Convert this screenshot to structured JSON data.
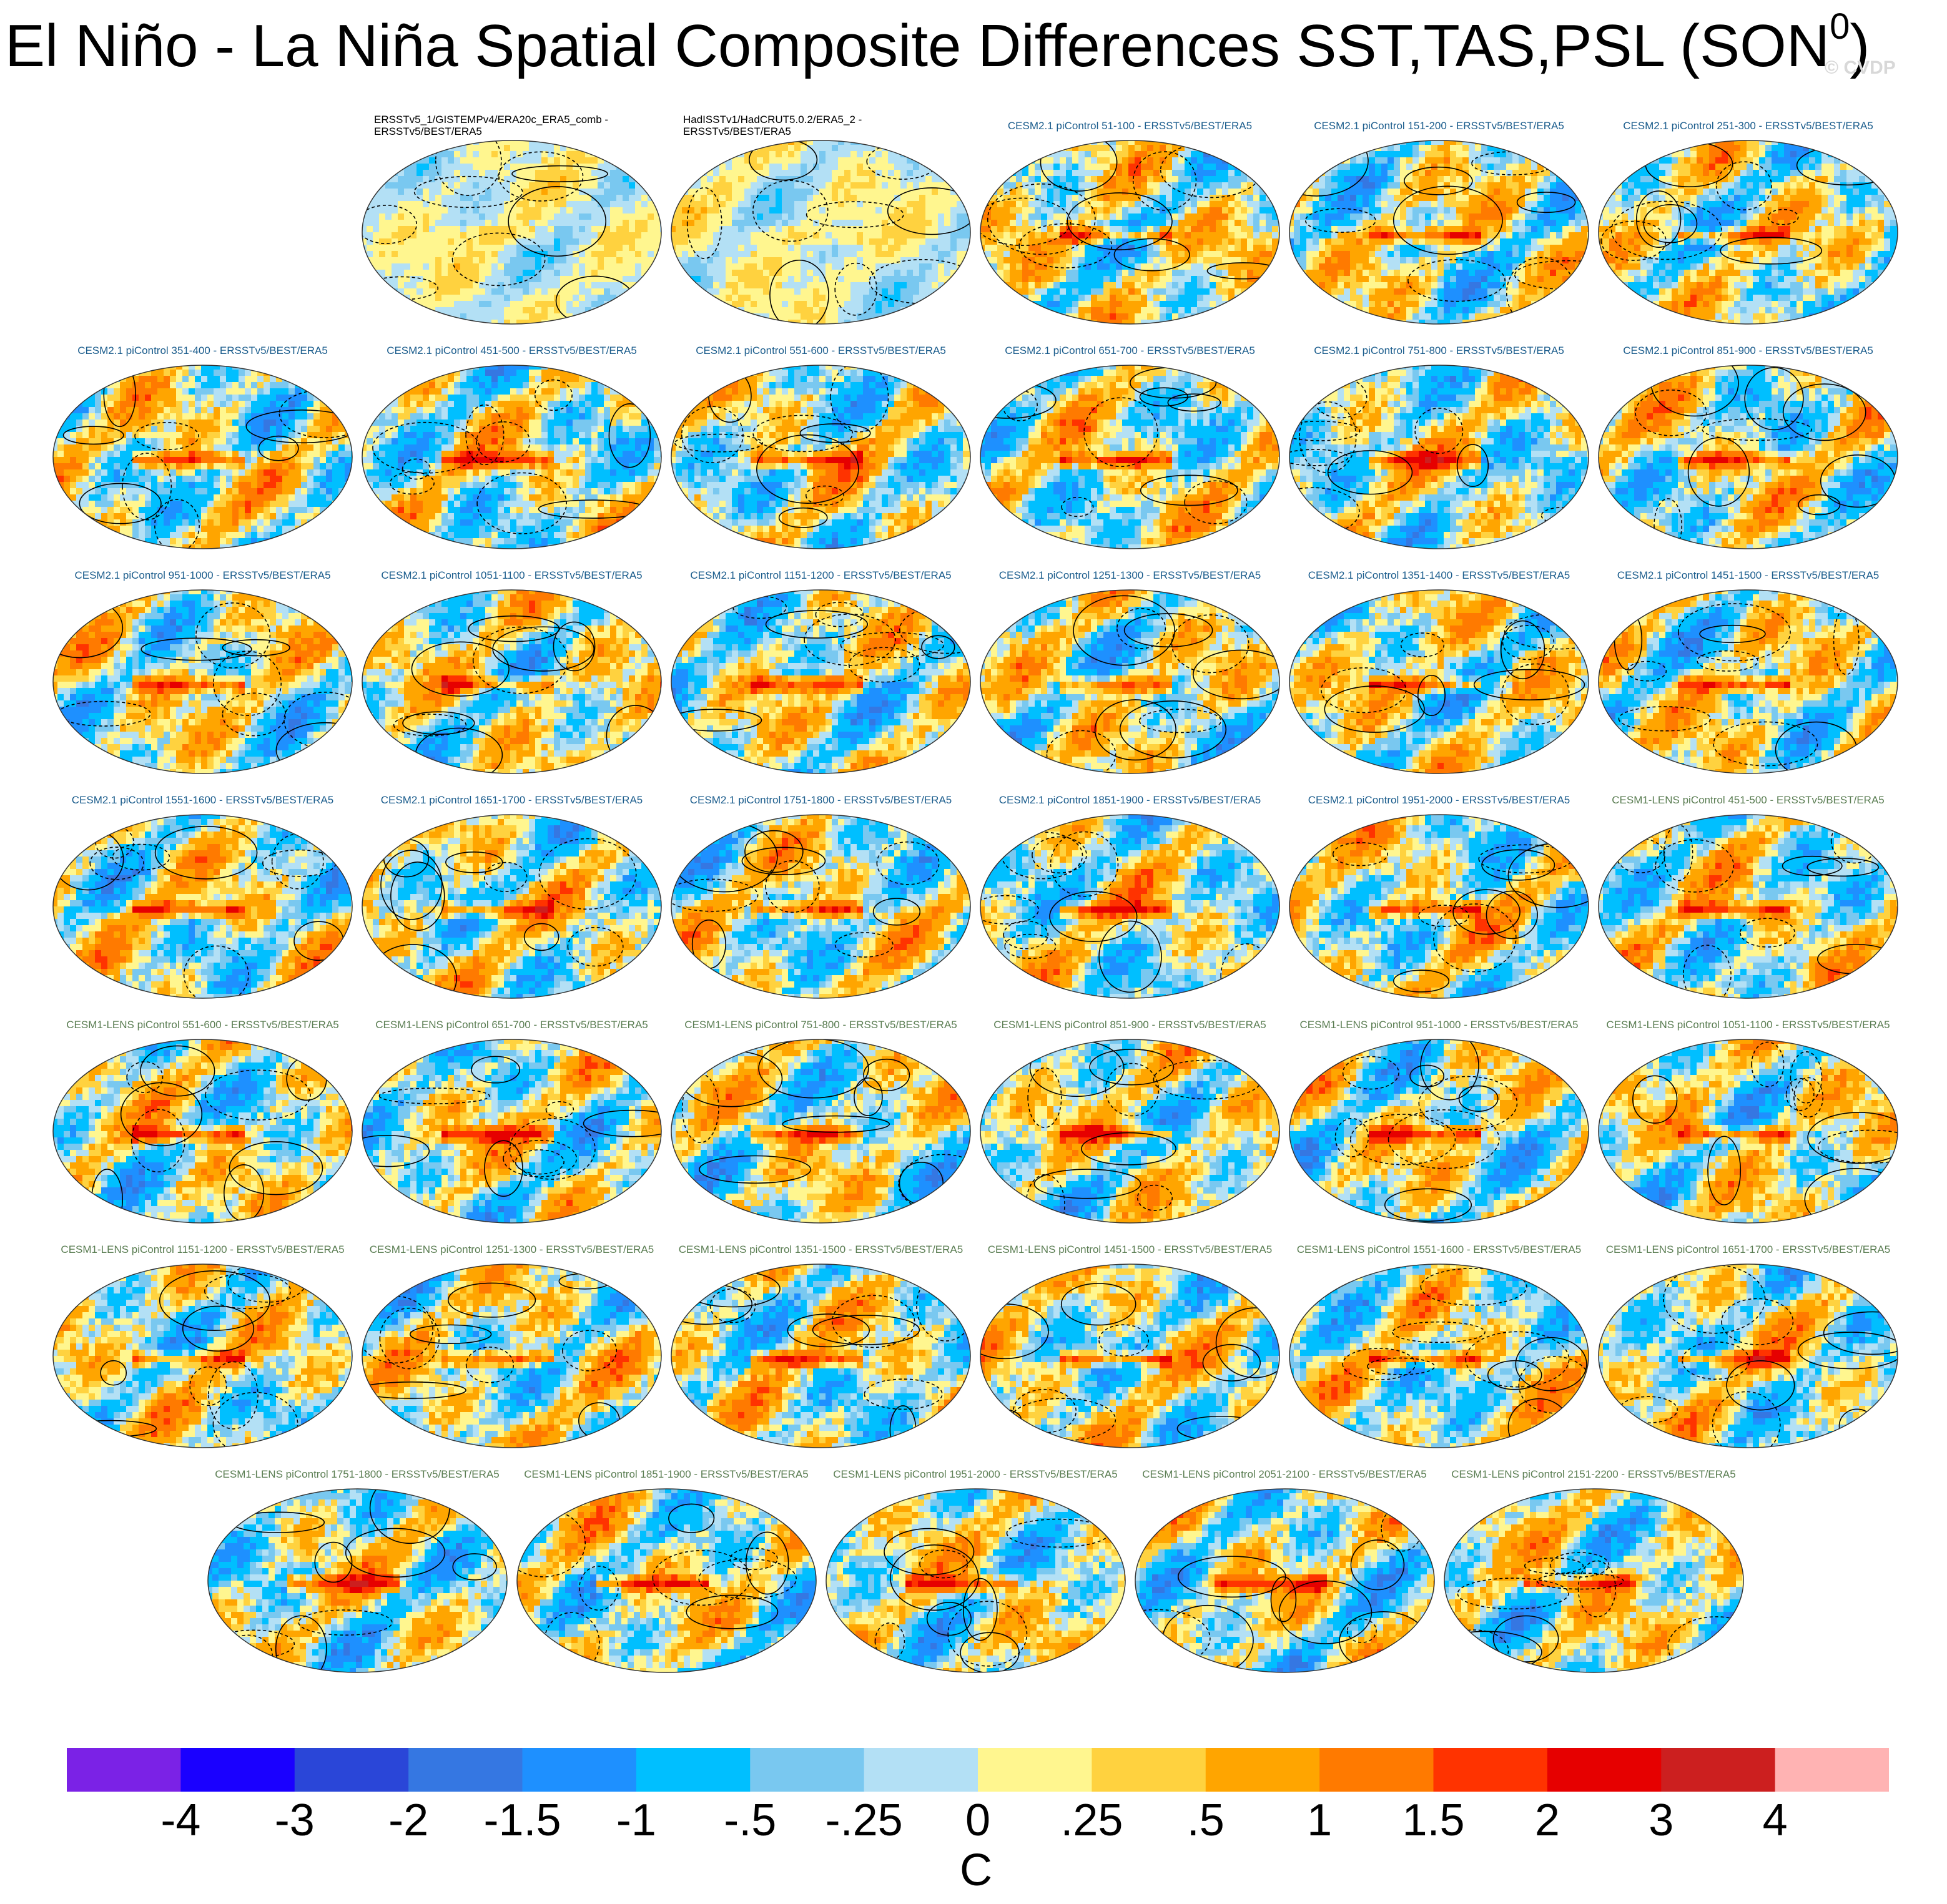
{
  "title": "El Niño - La Niña Spatial Composite Differences SST,TAS,PSL (SON",
  "title_sup": "0",
  "title_close": ")",
  "watermark": "© CVDP",
  "colors": {
    "model_cesm2": "#1a5c8c",
    "model_cesm1": "#5a7d52",
    "observations": "#000000"
  },
  "chart_data": {
    "type": "heatmap",
    "projection": "Robinson (global maps with PSL contours)",
    "layout": "7 rows of composite maps",
    "fields": [
      "SST",
      "TAS",
      "PSL"
    ],
    "season": "SON0",
    "rows": [
      [
        {
          "label": "ERSSTv5_1/GISTEMPv4/ERA20c_ERA5_comb -\nERSSTv5/BEST/ERA5",
          "group": "obs",
          "seed": 11
        },
        {
          "label": "HadISSTv1/HadCRUT5.0.2/ERA5_2 -\nERSSTv5/BEST/ERA5",
          "group": "obs",
          "seed": 12
        },
        {
          "label": "CESM2.1 piControl 51-100 - ERSSTv5/BEST/ERA5",
          "group": "cesm2",
          "seed": 13
        },
        {
          "label": "CESM2.1 piControl 151-200 - ERSSTv5/BEST/ERA5",
          "group": "cesm2",
          "seed": 14
        },
        {
          "label": "CESM2.1 piControl 251-300 - ERSSTv5/BEST/ERA5",
          "group": "cesm2",
          "seed": 15
        }
      ],
      [
        {
          "label": "CESM2.1 piControl 351-400 - ERSSTv5/BEST/ERA5",
          "group": "cesm2",
          "seed": 21
        },
        {
          "label": "CESM2.1 piControl 451-500 - ERSSTv5/BEST/ERA5",
          "group": "cesm2",
          "seed": 22
        },
        {
          "label": "CESM2.1 piControl 551-600 - ERSSTv5/BEST/ERA5",
          "group": "cesm2",
          "seed": 23
        },
        {
          "label": "CESM2.1 piControl 651-700 - ERSSTv5/BEST/ERA5",
          "group": "cesm2",
          "seed": 24
        },
        {
          "label": "CESM2.1 piControl 751-800 - ERSSTv5/BEST/ERA5",
          "group": "cesm2",
          "seed": 25
        },
        {
          "label": "CESM2.1 piControl 851-900 - ERSSTv5/BEST/ERA5",
          "group": "cesm2",
          "seed": 26
        }
      ],
      [
        {
          "label": "CESM2.1 piControl 951-1000 - ERSSTv5/BEST/ERA5",
          "group": "cesm2",
          "seed": 31
        },
        {
          "label": "CESM2.1 piControl 1051-1100 - ERSSTv5/BEST/ERA5",
          "group": "cesm2",
          "seed": 32
        },
        {
          "label": "CESM2.1 piControl 1151-1200 - ERSSTv5/BEST/ERA5",
          "group": "cesm2",
          "seed": 33
        },
        {
          "label": "CESM2.1 piControl 1251-1300 - ERSSTv5/BEST/ERA5",
          "group": "cesm2",
          "seed": 34
        },
        {
          "label": "CESM2.1 piControl 1351-1400 - ERSSTv5/BEST/ERA5",
          "group": "cesm2",
          "seed": 35
        },
        {
          "label": "CESM2.1 piControl 1451-1500 - ERSSTv5/BEST/ERA5",
          "group": "cesm2",
          "seed": 36
        }
      ],
      [
        {
          "label": "CESM2.1 piControl 1551-1600 - ERSSTv5/BEST/ERA5",
          "group": "cesm2",
          "seed": 41
        },
        {
          "label": "CESM2.1 piControl 1651-1700 - ERSSTv5/BEST/ERA5",
          "group": "cesm2",
          "seed": 42
        },
        {
          "label": "CESM2.1 piControl 1751-1800 - ERSSTv5/BEST/ERA5",
          "group": "cesm2",
          "seed": 43
        },
        {
          "label": "CESM2.1 piControl 1851-1900 - ERSSTv5/BEST/ERA5",
          "group": "cesm2",
          "seed": 44
        },
        {
          "label": "CESM2.1 piControl 1951-2000 - ERSSTv5/BEST/ERA5",
          "group": "cesm2",
          "seed": 45
        },
        {
          "label": "CESM1-LENS piControl 451-500 - ERSSTv5/BEST/ERA5",
          "group": "cesm1",
          "seed": 46
        }
      ],
      [
        {
          "label": "CESM1-LENS piControl 551-600 - ERSSTv5/BEST/ERA5",
          "group": "cesm1",
          "seed": 51
        },
        {
          "label": "CESM1-LENS piControl 651-700 - ERSSTv5/BEST/ERA5",
          "group": "cesm1",
          "seed": 52
        },
        {
          "label": "CESM1-LENS piControl 751-800 - ERSSTv5/BEST/ERA5",
          "group": "cesm1",
          "seed": 53
        },
        {
          "label": "CESM1-LENS piControl 851-900 - ERSSTv5/BEST/ERA5",
          "group": "cesm1",
          "seed": 54
        },
        {
          "label": "CESM1-LENS piControl 951-1000 - ERSSTv5/BEST/ERA5",
          "group": "cesm1",
          "seed": 55
        },
        {
          "label": "CESM1-LENS piControl 1051-1100 - ERSSTv5/BEST/ERA5",
          "group": "cesm1",
          "seed": 56
        }
      ],
      [
        {
          "label": "CESM1-LENS piControl 1151-1200 - ERSSTv5/BEST/ERA5",
          "group": "cesm1",
          "seed": 61
        },
        {
          "label": "CESM1-LENS piControl 1251-1300 - ERSSTv5/BEST/ERA5",
          "group": "cesm1",
          "seed": 62
        },
        {
          "label": "CESM1-LENS piControl 1351-1500 - ERSSTv5/BEST/ERA5",
          "group": "cesm1",
          "seed": 63
        },
        {
          "label": "CESM1-LENS piControl 1451-1500 - ERSSTv5/BEST/ERA5",
          "group": "cesm1",
          "seed": 64
        },
        {
          "label": "CESM1-LENS piControl 1551-1600 - ERSSTv5/BEST/ERA5",
          "group": "cesm1",
          "seed": 65
        },
        {
          "label": "CESM1-LENS piControl 1651-1700 - ERSSTv5/BEST/ERA5",
          "group": "cesm1",
          "seed": 66
        }
      ],
      [
        {
          "label": "CESM1-LENS piControl 1751-1800 - ERSSTv5/BEST/ERA5",
          "group": "cesm1",
          "seed": 71
        },
        {
          "label": "CESM1-LENS piControl 1851-1900 - ERSSTv5/BEST/ERA5",
          "group": "cesm1",
          "seed": 72
        },
        {
          "label": "CESM1-LENS piControl 1951-2000 - ERSSTv5/BEST/ERA5",
          "group": "cesm1",
          "seed": 73
        },
        {
          "label": "CESM1-LENS piControl 2051-2100 - ERSSTv5/BEST/ERA5",
          "group": "cesm1",
          "seed": 74
        },
        {
          "label": "CESM1-LENS piControl 2151-2200 - ERSSTv5/BEST/ERA5",
          "group": "cesm1",
          "seed": 75
        }
      ]
    ],
    "colorbar": {
      "units": "C",
      "labels": [
        "-4",
        "-3",
        "-2",
        "-1.5",
        "-1",
        "-.5",
        "-.25",
        "0",
        ".25",
        ".5",
        "1",
        "1.5",
        "2",
        "3",
        "4"
      ],
      "levels": [
        -4,
        -3,
        -2,
        -1.5,
        -1,
        -0.5,
        -0.25,
        0,
        0.25,
        0.5,
        1,
        1.5,
        2,
        3,
        4
      ],
      "colors": [
        "#7b22e6",
        "#1a00ff",
        "#2a46d8",
        "#3577e2",
        "#1e90ff",
        "#00bfff",
        "#79c8f0",
        "#b3e0f5",
        "#fff68f",
        "#ffd23f",
        "#ffa500",
        "#ff7a00",
        "#ff3300",
        "#e60000",
        "#cc1f1f",
        "#ffb3b3"
      ]
    }
  }
}
